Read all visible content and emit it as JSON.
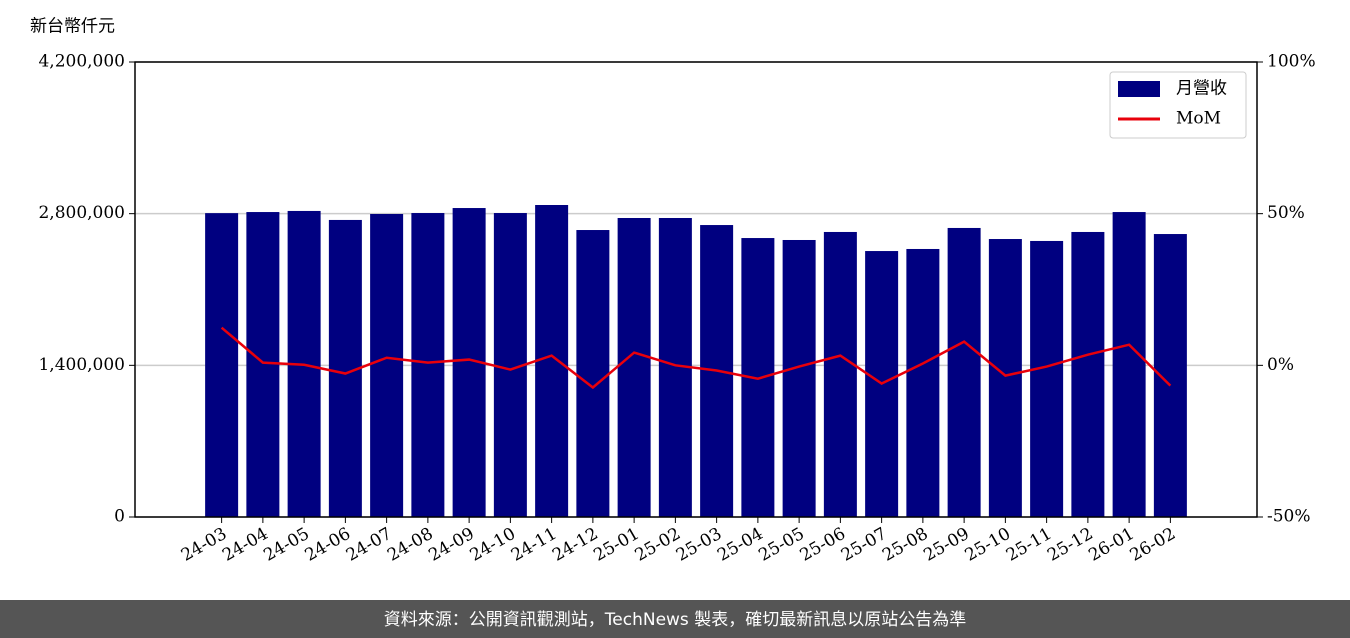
{
  "chart_data": {
    "type": "bar-line",
    "y_label": "新台幣仟元",
    "footer": "資料來源：公開資訊觀測站，TechNews 製表，確切最新訊息以原站公告為準",
    "categories": [
      "24-03",
      "24-04",
      "24-05",
      "24-06",
      "24-07",
      "24-08",
      "24-09",
      "24-10",
      "24-11",
      "24-12",
      "25-01",
      "25-02",
      "25-03",
      "25-04",
      "25-05",
      "25-06",
      "25-07",
      "25-08",
      "25-09",
      "25-10",
      "25-11",
      "25-12",
      "26-01",
      "26-02"
    ],
    "series": [
      {
        "name": "月營收",
        "type": "bar",
        "color": "#000080",
        "values": [
          2805000,
          2815000,
          2825000,
          2742000,
          2797000,
          2806000,
          2852000,
          2806000,
          2880000,
          2649000,
          2760000,
          2760000,
          2695000,
          2575000,
          2557000,
          2631000,
          2455000,
          2474000,
          2668000,
          2566000,
          2548000,
          2631000,
          2815000,
          2612000
        ]
      },
      {
        "name": "MoM",
        "type": "line",
        "axis": "y2",
        "color": "#e8000b",
        "values": [
          12.4,
          0.9,
          0.2,
          -2.7,
          2.5,
          0.9,
          1.9,
          -1.4,
          3.2,
          -7.3,
          4.2,
          0,
          -1.7,
          -4.4,
          -0.4,
          3.2,
          -6.0,
          0.6,
          7.8,
          -3.4,
          -0.4,
          3.5,
          6.8,
          -6.7
        ]
      }
    ],
    "ylim": [
      0,
      4200000
    ],
    "yticks": [
      {
        "value": 0,
        "label": "0"
      },
      {
        "value": 1400000,
        "label": "1,400,000"
      },
      {
        "value": 2800000,
        "label": "2,800,000"
      },
      {
        "value": 4200000,
        "label": "4,200,000"
      }
    ],
    "y2lim": [
      -50,
      100
    ],
    "y2ticks": [
      {
        "value": -50,
        "label": "-50%"
      },
      {
        "value": 0,
        "label": "0%"
      },
      {
        "value": 50,
        "label": "50%"
      },
      {
        "value": 100,
        "label": "100%"
      }
    ],
    "grid": true,
    "legend": "upper right"
  }
}
